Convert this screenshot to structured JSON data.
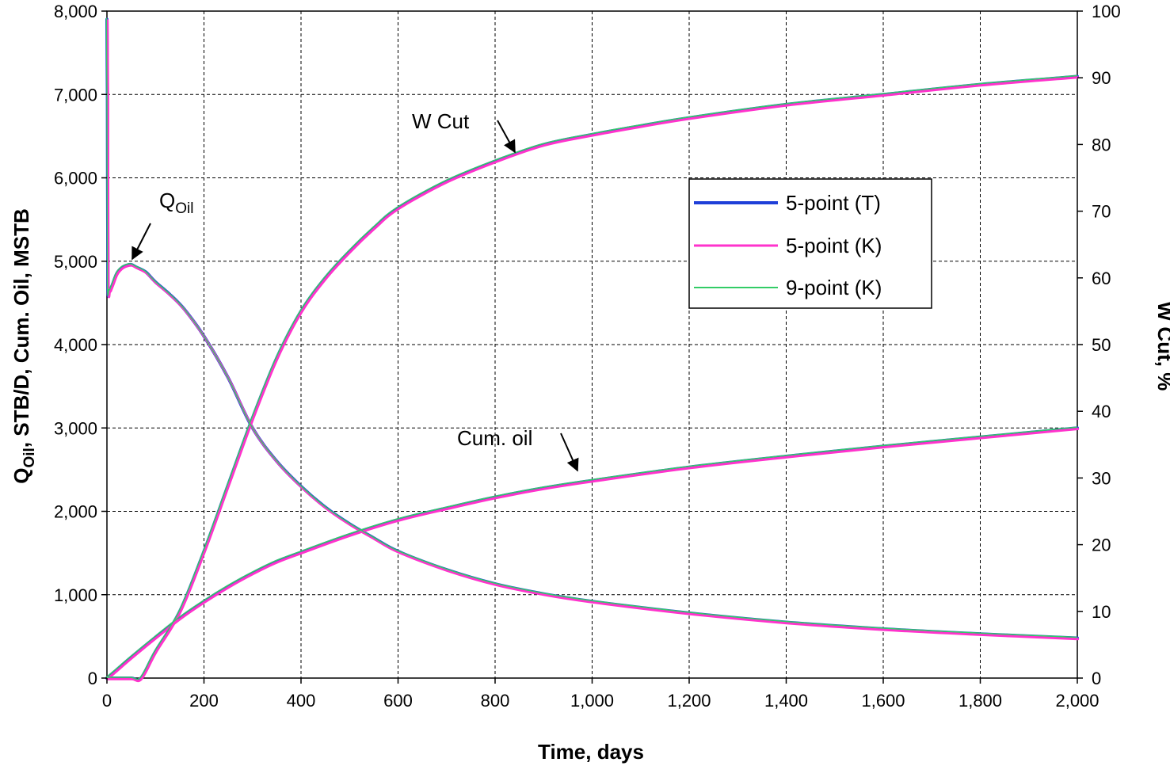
{
  "chart_data": {
    "type": "line",
    "xlabel": "Time, days",
    "ylabel_left": {
      "main": "Q",
      "sub": "Oil",
      "rest": ", STB/D, Cum. Oil, MSTB"
    },
    "ylabel_right": "W Cut, %",
    "xlim": [
      0,
      2000
    ],
    "ylim_left": [
      0,
      8000
    ],
    "ylim_right": [
      0,
      100
    ],
    "x_ticks": [
      0,
      200,
      400,
      600,
      800,
      1000,
      1200,
      1400,
      1600,
      1800,
      2000
    ],
    "x_tick_labels": [
      "0",
      "200",
      "400",
      "600",
      "800",
      "1,000",
      "1,200",
      "1,400",
      "1,600",
      "1,800",
      "2,000"
    ],
    "y_left_ticks": [
      0,
      1000,
      2000,
      3000,
      4000,
      5000,
      6000,
      7000,
      8000
    ],
    "y_left_tick_labels": [
      "0",
      "1,000",
      "2,000",
      "3,000",
      "4,000",
      "5,000",
      "6,000",
      "7,000",
      "8,000"
    ],
    "y_right_ticks": [
      0,
      10,
      20,
      30,
      40,
      50,
      60,
      70,
      80,
      90,
      100
    ],
    "y_right_tick_labels": [
      "0",
      "10",
      "20",
      "30",
      "40",
      "50",
      "60",
      "70",
      "80",
      "90",
      "100"
    ],
    "grid": true,
    "legend_position": "right-center",
    "series": [
      {
        "name": "5-point (T)",
        "color": "#1f3fd8",
        "width": 4
      },
      {
        "name": "5-point (K)",
        "color": "#ff33cc",
        "width": 3
      },
      {
        "name": "9-point (K)",
        "color": "#33cc66",
        "width": 1.5
      }
    ],
    "curves": {
      "qoil": {
        "axis": "left",
        "x": [
          0,
          1,
          2,
          5,
          10,
          20,
          30,
          40,
          50,
          60,
          80,
          100,
          130,
          160,
          200,
          250,
          300,
          350,
          400,
          450,
          500,
          550,
          600,
          700,
          800,
          900,
          1000,
          1200,
          1400,
          1600,
          1800,
          2000
        ],
        "y": [
          7900,
          7000,
          4800,
          4650,
          4700,
          4850,
          4920,
          4950,
          4960,
          4930,
          4870,
          4750,
          4600,
          4420,
          4100,
          3600,
          3000,
          2600,
          2300,
          2050,
          1850,
          1680,
          1520,
          1300,
          1130,
          1010,
          920,
          780,
          670,
          590,
          530,
          480
        ]
      },
      "wcut": {
        "axis": "right",
        "x": [
          0,
          20,
          50,
          70,
          100,
          150,
          200,
          250,
          300,
          350,
          400,
          450,
          500,
          550,
          600,
          700,
          800,
          900,
          1000,
          1100,
          1200,
          1400,
          1600,
          1800,
          2000
        ],
        "y": [
          0,
          0,
          0,
          0,
          4,
          10,
          19,
          29,
          39,
          48,
          55,
          60,
          64,
          67.5,
          70.5,
          74.5,
          77.5,
          80,
          81.5,
          82.8,
          84,
          86,
          87.5,
          89,
          90.2
        ]
      },
      "cumoil": {
        "axis": "left",
        "x": [
          0,
          20,
          50,
          100,
          150,
          200,
          250,
          300,
          350,
          400,
          500,
          600,
          700,
          800,
          900,
          1000,
          1200,
          1400,
          1600,
          1800,
          2000
        ],
        "y": [
          0,
          100,
          250,
          490,
          720,
          920,
          1100,
          1260,
          1400,
          1510,
          1720,
          1900,
          2040,
          2170,
          2280,
          2370,
          2530,
          2660,
          2780,
          2890,
          3000
        ]
      }
    },
    "annotations": [
      {
        "main": "Q",
        "sub": "Oil"
      },
      {
        "text": "W Cut"
      },
      {
        "text": "Cum. oil"
      }
    ]
  }
}
